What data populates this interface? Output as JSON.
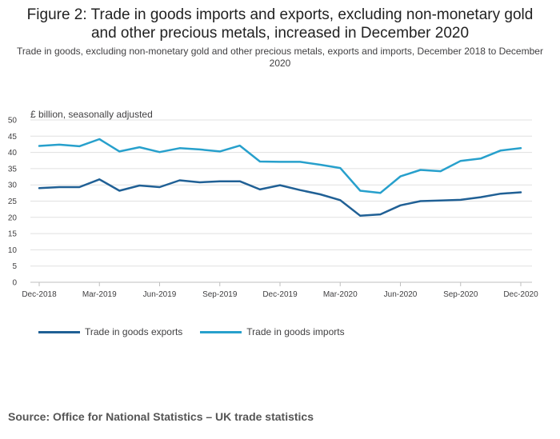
{
  "page": {
    "title": "Figure 2: Trade in goods imports and exports, excluding non-monetary gold and other precious metals, increased in December 2020",
    "subtitle": "Trade in goods, excluding non-monetary gold and other precious metals, exports and imports, December 2018 to December 2020",
    "source": "Source: Office for National Statistics – UK trade statistics"
  },
  "colors": {
    "exports": "#206095",
    "imports": "#27a0cc",
    "grid": "#e0e0e0",
    "axis": "#bfbfbf"
  },
  "chart_data": {
    "type": "line",
    "title": "Figure 2: Trade in goods imports and exports, excluding non-monetary gold and other precious metals, increased in December 2020",
    "ylabel": "£ billion, seasonally adjusted",
    "xlabel": "",
    "ylim": [
      0,
      50
    ],
    "yticks": [
      0,
      5,
      10,
      15,
      20,
      25,
      30,
      35,
      40,
      45,
      50
    ],
    "grid": true,
    "legend_position": "bottom-left",
    "x": [
      "Dec-2018",
      "Jan-2019",
      "Feb-2019",
      "Mar-2019",
      "Apr-2019",
      "May-2019",
      "Jun-2019",
      "Jul-2019",
      "Aug-2019",
      "Sep-2019",
      "Oct-2019",
      "Nov-2019",
      "Dec-2019",
      "Jan-2020",
      "Feb-2020",
      "Mar-2020",
      "Apr-2020",
      "May-2020",
      "Jun-2020",
      "Jul-2020",
      "Aug-2020",
      "Sep-2020",
      "Oct-2020",
      "Nov-2020",
      "Dec-2020"
    ],
    "xtick_labels": [
      "Dec-2018",
      "Mar-2019",
      "Jun-2019",
      "Sep-2019",
      "Dec-2019",
      "Mar-2020",
      "Jun-2020",
      "Sep-2020",
      "Dec-2020"
    ],
    "series": [
      {
        "name": "Trade in goods exports",
        "values": [
          29.0,
          29.3,
          29.3,
          31.7,
          28.2,
          29.8,
          29.3,
          31.4,
          30.8,
          31.1,
          31.1,
          28.6,
          29.9,
          28.4,
          27.1,
          25.3,
          20.5,
          20.9,
          23.7,
          25.0,
          25.2,
          25.4,
          26.2,
          27.3,
          27.7
        ]
      },
      {
        "name": "Trade in goods imports",
        "values": [
          42.0,
          42.4,
          41.9,
          44.1,
          40.3,
          41.6,
          40.1,
          41.3,
          40.9,
          40.3,
          42.1,
          37.2,
          37.1,
          37.1,
          36.2,
          35.2,
          28.2,
          27.5,
          32.6,
          34.6,
          34.2,
          37.4,
          38.1,
          40.6,
          41.3
        ]
      }
    ]
  }
}
